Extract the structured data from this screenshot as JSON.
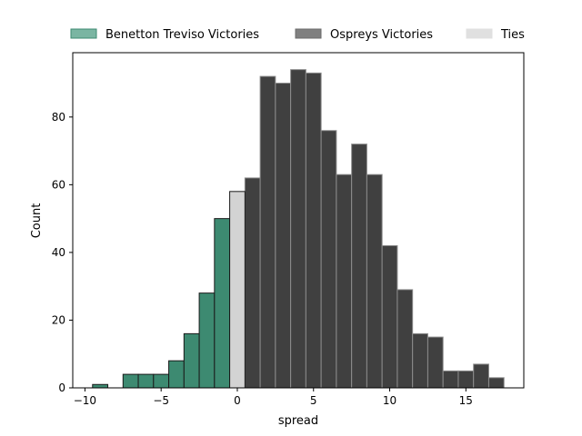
{
  "chart_data": {
    "type": "bar",
    "xlabel": "spread",
    "ylabel": "Count",
    "xlim": [
      -10.8,
      18.8
    ],
    "ylim": [
      0,
      99
    ],
    "xticks": [
      -10,
      -5,
      0,
      5,
      10,
      15
    ],
    "yticks": [
      0,
      20,
      40,
      60,
      80
    ],
    "legend_position": "top, above plot",
    "series": [
      {
        "name": "Benetton Treviso Victories",
        "color": "#3d8a71",
        "bins": [
          {
            "x0": -9.5,
            "x1": -8.5,
            "value": 1
          },
          {
            "x0": -8.5,
            "x1": -7.5,
            "value": 0
          },
          {
            "x0": -7.5,
            "x1": -6.5,
            "value": 4
          },
          {
            "x0": -6.5,
            "x1": -5.5,
            "value": 4
          },
          {
            "x0": -5.5,
            "x1": -4.5,
            "value": 4
          },
          {
            "x0": -4.5,
            "x1": -3.5,
            "value": 8
          },
          {
            "x0": -3.5,
            "x1": -2.5,
            "value": 16
          },
          {
            "x0": -2.5,
            "x1": -1.5,
            "value": 28
          },
          {
            "x0": -1.5,
            "x1": -0.5,
            "value": 50
          }
        ]
      },
      {
        "name": "Ospreys Victories",
        "color": "#404040",
        "bins": [
          {
            "x0": 0.5,
            "x1": 1.5,
            "value": 62
          },
          {
            "x0": 1.5,
            "x1": 2.5,
            "value": 92
          },
          {
            "x0": 2.5,
            "x1": 3.5,
            "value": 90
          },
          {
            "x0": 3.5,
            "x1": 4.5,
            "value": 94
          },
          {
            "x0": 4.5,
            "x1": 5.5,
            "value": 93
          },
          {
            "x0": 5.5,
            "x1": 6.5,
            "value": 76
          },
          {
            "x0": 6.5,
            "x1": 7.5,
            "value": 63
          },
          {
            "x0": 7.5,
            "x1": 8.5,
            "value": 72
          },
          {
            "x0": 8.5,
            "x1": 9.5,
            "value": 63
          },
          {
            "x0": 9.5,
            "x1": 10.5,
            "value": 42
          },
          {
            "x0": 10.5,
            "x1": 11.5,
            "value": 29
          },
          {
            "x0": 11.5,
            "x1": 12.5,
            "value": 16
          },
          {
            "x0": 12.5,
            "x1": 13.5,
            "value": 15
          },
          {
            "x0": 13.5,
            "x1": 14.5,
            "value": 5
          },
          {
            "x0": 14.5,
            "x1": 15.5,
            "value": 5
          },
          {
            "x0": 15.5,
            "x1": 16.5,
            "value": 7
          },
          {
            "x0": 16.5,
            "x1": 17.5,
            "value": 3
          }
        ]
      },
      {
        "name": "Ties",
        "color": "#d3d3d3",
        "bins": [
          {
            "x0": -0.5,
            "x1": 0.5,
            "value": 58
          }
        ]
      }
    ]
  }
}
